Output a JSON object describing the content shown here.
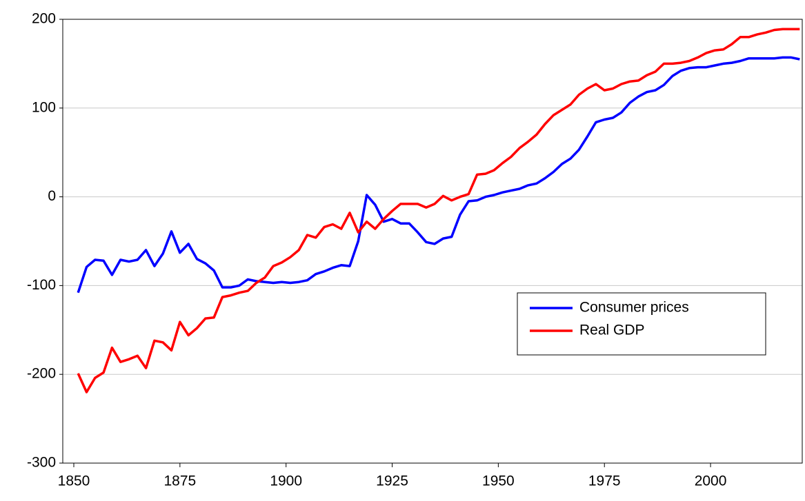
{
  "chart_data": {
    "type": "line",
    "x": [
      1851,
      1853,
      1855,
      1857,
      1859,
      1861,
      1863,
      1865,
      1867,
      1869,
      1871,
      1873,
      1875,
      1877,
      1879,
      1881,
      1883,
      1885,
      1887,
      1889,
      1891,
      1893,
      1895,
      1897,
      1899,
      1901,
      1903,
      1905,
      1907,
      1909,
      1911,
      1913,
      1915,
      1917,
      1919,
      1921,
      1923,
      1925,
      1927,
      1929,
      1931,
      1933,
      1935,
      1937,
      1939,
      1941,
      1943,
      1945,
      1947,
      1949,
      1951,
      1953,
      1955,
      1957,
      1959,
      1961,
      1963,
      1965,
      1967,
      1969,
      1971,
      1973,
      1975,
      1977,
      1979,
      1981,
      1983,
      1985,
      1987,
      1989,
      1991,
      1993,
      1995,
      1997,
      1999,
      2001,
      2003,
      2005,
      2007,
      2009,
      2011,
      2013,
      2015,
      2017,
      2019,
      2021
    ],
    "series": [
      {
        "name": "Consumer prices",
        "color": "#0000ff",
        "values": [
          -108,
          -79,
          -71,
          -72,
          -88,
          -71,
          -73,
          -71,
          -60,
          -78,
          -64,
          -39,
          -63,
          -53,
          -70,
          -75,
          -83,
          -102,
          -102,
          -100,
          -93,
          -95,
          -96,
          -97,
          -96,
          -97,
          -96,
          -94,
          -87,
          -84,
          -80,
          -77,
          -78,
          -50,
          2,
          -9,
          -28,
          -25,
          -30,
          -30,
          -40,
          -51,
          -53,
          -47,
          -45,
          -20,
          -5,
          -4,
          0,
          2,
          5,
          7,
          9,
          13,
          15,
          21,
          28,
          37,
          43,
          53,
          68,
          84,
          87,
          89,
          95,
          106,
          113,
          118,
          120,
          126,
          136,
          142,
          145,
          146,
          146,
          148,
          150,
          151,
          153,
          156,
          156,
          156,
          156,
          157,
          157,
          155
        ]
      },
      {
        "name": "Real GDP",
        "color": "#ff0000",
        "values": [
          -199,
          -220,
          -204,
          -198,
          -170,
          -186,
          -183,
          -179,
          -193,
          -162,
          -164,
          -173,
          -141,
          -156,
          -148,
          -137,
          -136,
          -113,
          -111,
          -108,
          -106,
          -97,
          -91,
          -78,
          -74,
          -68,
          -60,
          -43,
          -46,
          -34,
          -31,
          -36,
          -18,
          -40,
          -28,
          -36,
          -25,
          -16,
          -8,
          -8,
          -8,
          -12,
          -8,
          1,
          -4,
          0,
          3,
          25,
          26,
          30,
          38,
          45,
          55,
          62,
          70,
          82,
          92,
          98,
          104,
          115,
          122,
          127,
          120,
          122,
          127,
          130,
          131,
          137,
          141,
          150,
          150,
          151,
          153,
          157,
          162,
          165,
          166,
          172,
          180,
          180,
          183,
          185,
          188,
          189,
          189,
          189
        ]
      }
    ],
    "xlim": [
      1847.4,
      2021.6
    ],
    "xticks": [
      1850,
      1875,
      1900,
      1925,
      1950,
      1975,
      2000
    ],
    "ylim": [
      -300,
      200
    ],
    "yticks": [
      -300,
      -200,
      -100,
      0,
      100,
      200
    ],
    "grid": true,
    "legend_loc": "lower right"
  }
}
